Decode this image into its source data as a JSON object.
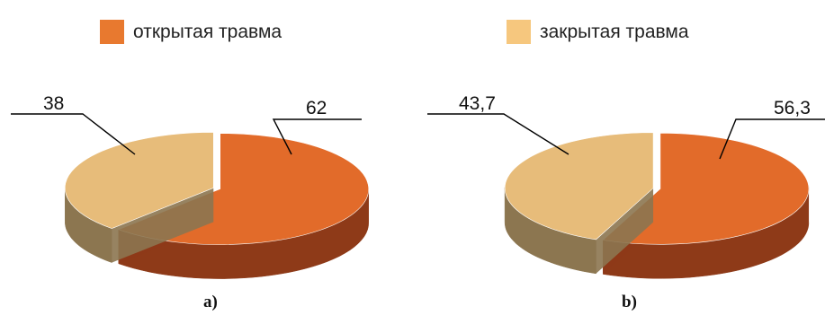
{
  "legend": [
    {
      "label": "открытая травма",
      "color": "#E8792F"
    },
    {
      "label": "закрытая травма",
      "color": "#F6C77E"
    }
  ],
  "chart_data": [
    {
      "type": "pie",
      "panel_label": "a)",
      "series": [
        {
          "name": "открытая травма",
          "value": 62,
          "label": "62"
        },
        {
          "name": "закрытая травма",
          "value": 38,
          "label": "38"
        }
      ]
    },
    {
      "type": "pie",
      "panel_label": "b)",
      "series": [
        {
          "name": "открытая травма",
          "value": 56.3,
          "label": "56,3"
        },
        {
          "name": "закрытая травма",
          "value": 43.7,
          "label": "43,7"
        }
      ]
    }
  ],
  "colors": {
    "open_top": "#E26B2A",
    "open_side": "#8E3A18",
    "closed_top": "#E7BC7A",
    "closed_side": "#8C7650",
    "leader_line": "#000000"
  }
}
